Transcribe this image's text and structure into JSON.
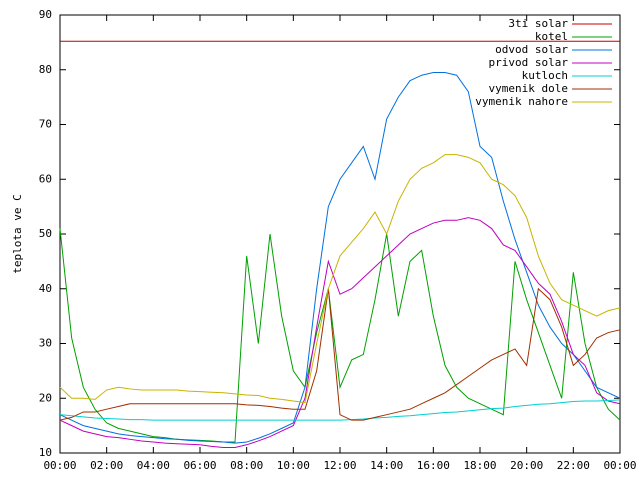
{
  "chart_data": {
    "type": "line",
    "ylabel": "teplota ve C",
    "x": [
      0,
      0.5,
      1,
      1.5,
      2,
      2.5,
      3,
      3.5,
      4,
      4.5,
      5,
      5.5,
      6,
      6.5,
      7,
      7.5,
      8,
      8.5,
      9,
      9.5,
      10,
      10.5,
      11,
      11.5,
      12,
      12.5,
      13,
      13.5,
      14,
      14.5,
      15,
      15.5,
      16,
      16.5,
      17,
      17.5,
      18,
      18.5,
      19,
      19.5,
      20,
      20.5,
      21,
      21.5,
      22,
      22.5,
      23,
      23.5,
      24
    ],
    "xlim": [
      0,
      24
    ],
    "xticks": [
      {
        "value": 0,
        "label": "00:00"
      },
      {
        "value": 2,
        "label": "02:00"
      },
      {
        "value": 4,
        "label": "04:00"
      },
      {
        "value": 6,
        "label": "06:00"
      },
      {
        "value": 8,
        "label": "08:00"
      },
      {
        "value": 10,
        "label": "10:00"
      },
      {
        "value": 12,
        "label": "12:00"
      },
      {
        "value": 14,
        "label": "14:00"
      },
      {
        "value": 16,
        "label": "16:00"
      },
      {
        "value": 18,
        "label": "18:00"
      },
      {
        "value": 20,
        "label": "20:00"
      },
      {
        "value": 22,
        "label": "22:00"
      },
      {
        "value": 24,
        "label": "00:00"
      }
    ],
    "ylim": [
      10,
      90
    ],
    "yticks": [
      10,
      20,
      30,
      40,
      50,
      60,
      70,
      80,
      90
    ],
    "legend": "top-right",
    "series": [
      {
        "name": "3ti solar",
        "color": "#c00000",
        "values": [
          85.2,
          85.2,
          85.2,
          85.2,
          85.2,
          85.2,
          85.2,
          85.2,
          85.2,
          85.2,
          85.2,
          85.2,
          85.2,
          85.2,
          85.2,
          85.2,
          85.2,
          85.2,
          85.2,
          85.2,
          85.2,
          85.2,
          85.2,
          85.2,
          85.2,
          85.2,
          85.2,
          85.2,
          85.2,
          85.2,
          85.2,
          85.2,
          85.2,
          85.2,
          85.2,
          85.2,
          85.2,
          85.2,
          85.2,
          85.2,
          85.2,
          85.2,
          85.2,
          85.2,
          85.2,
          85.2,
          85.2,
          85.2,
          85.2
        ]
      },
      {
        "name": "kotel",
        "color": "#00a000",
        "values": [
          51,
          31,
          22,
          18,
          15.5,
          14.5,
          14,
          13.5,
          13,
          12.8,
          12.5,
          12.4,
          12.3,
          12.2,
          12,
          12,
          46,
          30,
          50,
          35,
          25,
          22,
          32,
          40,
          22,
          27,
          28,
          38,
          50,
          35,
          45,
          47,
          35,
          26,
          22,
          20,
          19,
          18,
          17,
          45,
          38,
          32,
          26,
          20,
          43,
          30,
          22,
          18,
          16
        ]
      },
      {
        "name": "odvod solar",
        "color": "#0070e0",
        "values": [
          17,
          16,
          15,
          14.5,
          14,
          13.5,
          13.2,
          13,
          12.8,
          12.6,
          12.5,
          12.3,
          12.2,
          12.1,
          12,
          11.8,
          12,
          12.7,
          13.5,
          14.5,
          15.5,
          22,
          40,
          55,
          60,
          63,
          66,
          60,
          71,
          75,
          78,
          79,
          79.5,
          79.5,
          79,
          76,
          66,
          64,
          56,
          49,
          43,
          37,
          33,
          30,
          28,
          25,
          22,
          21,
          20
        ]
      },
      {
        "name": "privod solar",
        "color": "#c000c0",
        "values": [
          16,
          15,
          14,
          13.5,
          13,
          12.8,
          12.5,
          12.2,
          12,
          11.8,
          11.7,
          11.6,
          11.5,
          11.2,
          11,
          11,
          11.5,
          12.2,
          13,
          14,
          15,
          20,
          33,
          45,
          39,
          40,
          42,
          44,
          46,
          48,
          50,
          51,
          52,
          52.5,
          52.5,
          53,
          52.5,
          51,
          48,
          47,
          44,
          41,
          39,
          34,
          28,
          26,
          21,
          19.5,
          19
        ]
      },
      {
        "name": "kutloch",
        "color": "#00d0d0",
        "values": [
          17,
          16.8,
          16.6,
          16.4,
          16.3,
          16.2,
          16.1,
          16.1,
          16,
          16,
          16,
          16,
          16,
          16,
          16,
          16,
          16,
          16,
          16,
          16,
          16,
          16,
          16,
          16,
          16,
          16.1,
          16.2,
          16.4,
          16.5,
          16.7,
          16.8,
          17,
          17.2,
          17.4,
          17.5,
          17.7,
          17.9,
          18.1,
          18.2,
          18.5,
          18.7,
          18.9,
          19,
          19.2,
          19.4,
          19.5,
          19.5,
          19.6,
          19.7
        ]
      },
      {
        "name": "vymenik dole",
        "color": "#a03000",
        "values": [
          16,
          16.5,
          17.5,
          17.5,
          18,
          18.5,
          19,
          19,
          19,
          19,
          19,
          19,
          19,
          19,
          19,
          19,
          18.8,
          18.7,
          18.5,
          18.2,
          18,
          18,
          25,
          40,
          17,
          16,
          16,
          16.5,
          17,
          17.5,
          18,
          19,
          20,
          21,
          22.5,
          24,
          25.5,
          27,
          28,
          29,
          26,
          40,
          38,
          33,
          26,
          28,
          31,
          32,
          32.5
        ]
      },
      {
        "name": "vymenik nahore",
        "color": "#c8b400",
        "values": [
          22,
          20,
          20,
          19.8,
          21.5,
          22,
          21.7,
          21.5,
          21.5,
          21.5,
          21.5,
          21.3,
          21.2,
          21.1,
          21,
          20.8,
          20.6,
          20.5,
          20,
          19.8,
          19.5,
          19.2,
          30,
          40,
          46,
          48.5,
          51,
          54,
          50,
          56,
          60,
          62,
          63,
          64.5,
          64.5,
          64,
          63,
          60,
          59,
          57,
          53,
          46,
          41,
          38,
          37,
          36,
          35,
          36,
          36.5
        ]
      }
    ]
  }
}
